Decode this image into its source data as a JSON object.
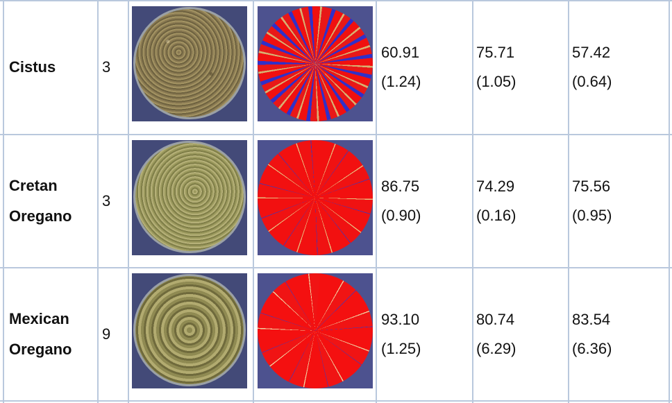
{
  "rows": [
    {
      "name_line1": "Cistus",
      "name_line2": "",
      "count": "3",
      "photo_icon": "herb-sample-petri-dish-photo",
      "segmentation_icon": "segmentation-map-red-blue",
      "values": [
        {
          "mean": "60.91",
          "sd": "(1.24)"
        },
        {
          "mean": "75.71",
          "sd": "(1.05)"
        },
        {
          "mean": "57.42",
          "sd": "(0.64)"
        }
      ]
    },
    {
      "name_line1": "Cretan",
      "name_line2": "Oregano",
      "count": "3",
      "photo_icon": "herb-sample-petri-dish-photo",
      "segmentation_icon": "segmentation-map-red-blue",
      "values": [
        {
          "mean": "86.75",
          "sd": "(0.90)"
        },
        {
          "mean": "74.29",
          "sd": "(0.16)"
        },
        {
          "mean": "75.56",
          "sd": "(0.95)"
        }
      ]
    },
    {
      "name_line1": "Mexican",
      "name_line2": "Oregano",
      "count": "9",
      "photo_icon": "herb-sample-petri-dish-photo",
      "segmentation_icon": "segmentation-map-red-blue",
      "values": [
        {
          "mean": "93.10",
          "sd": "(1.25)"
        },
        {
          "mean": "80.74",
          "sd": "(6.29)"
        },
        {
          "mean": "83.54",
          "sd": "(6.36)"
        }
      ]
    }
  ],
  "colors": {
    "grid_line": "#b9c8dd",
    "segment_red": "#f01010",
    "segment_blue": "#3030c8",
    "image_background": "#434a78"
  }
}
